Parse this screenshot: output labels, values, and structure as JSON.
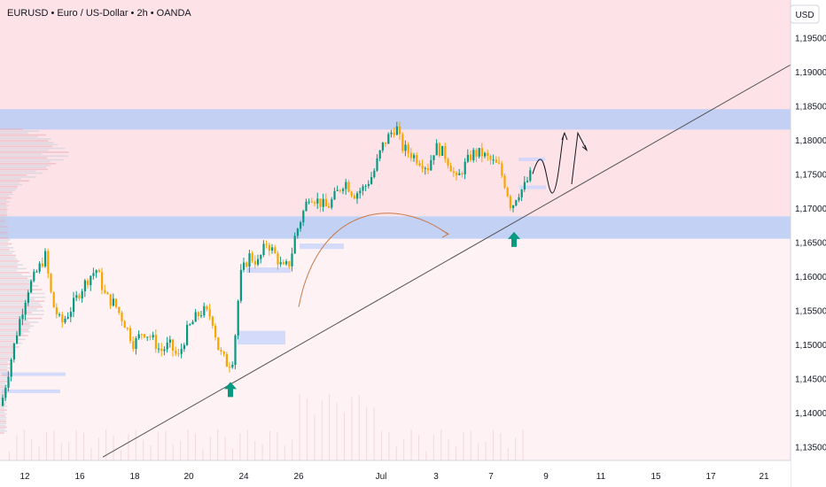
{
  "header": {
    "title": "EURUSD • Euro / US-Dollar • 2h • OANDA"
  },
  "currency_badge": "USD",
  "colors": {
    "bull": "#089981",
    "bear": "#f7a600",
    "resistance_zone": "#b8cbf5",
    "support_zone": "#b8cbf5",
    "premium_zone": "#fde3e8",
    "trendline": "#555555",
    "arrow_up": "#089981",
    "curve_arrow": "#c97a4a",
    "projection": "#131722"
  },
  "chart_data": {
    "type": "candlestick",
    "symbol": "EURUSD",
    "timeframe": "2h",
    "x_tick_labels": [
      "12",
      "16",
      "18",
      "20",
      "24",
      "26",
      "Jul",
      "3",
      "7",
      "9",
      "11",
      "15",
      "17",
      "21"
    ],
    "y_tick_labels": [
      "1,13500",
      "1,14000",
      "1,14500",
      "1,15000",
      "1,15500",
      "1,16000",
      "1,16500",
      "1,17000",
      "1,17500",
      "1,18000",
      "1,18500",
      "1,19000",
      "1,19500"
    ],
    "y_ticks": [
      1.135,
      1.14,
      1.145,
      1.15,
      1.155,
      1.16,
      1.165,
      1.17,
      1.175,
      1.18,
      1.185,
      1.19,
      1.195
    ],
    "ylim": [
      1.133,
      1.2005
    ],
    "price_path": [
      [
        0,
        1.141
      ],
      [
        10,
        1.147
      ],
      [
        20,
        1.153
      ],
      [
        30,
        1.158
      ],
      [
        42,
        1.161
      ],
      [
        50,
        1.163
      ],
      [
        58,
        1.156
      ],
      [
        68,
        1.153
      ],
      [
        78,
        1.155
      ],
      [
        90,
        1.158
      ],
      [
        100,
        1.16
      ],
      [
        108,
        1.161
      ],
      [
        118,
        1.157
      ],
      [
        128,
        1.156
      ],
      [
        140,
        1.153
      ],
      [
        150,
        1.15
      ],
      [
        160,
        1.152
      ],
      [
        170,
        1.151
      ],
      [
        180,
        1.149
      ],
      [
        190,
        1.15
      ],
      [
        200,
        1.148
      ],
      [
        210,
        1.152
      ],
      [
        220,
        1.154
      ],
      [
        228,
        1.155
      ],
      [
        238,
        1.154
      ],
      [
        246,
        1.149
      ],
      [
        256,
        1.147
      ],
      [
        262,
        1.148
      ],
      [
        270,
        1.16
      ],
      [
        280,
        1.163
      ],
      [
        290,
        1.162
      ],
      [
        300,
        1.165
      ],
      [
        310,
        1.163
      ],
      [
        318,
        1.161
      ],
      [
        326,
        1.162
      ],
      [
        332,
        1.166
      ],
      [
        340,
        1.169
      ],
      [
        348,
        1.172
      ],
      [
        358,
        1.171
      ],
      [
        368,
        1.17
      ],
      [
        378,
        1.172
      ],
      [
        388,
        1.174
      ],
      [
        398,
        1.172
      ],
      [
        410,
        1.173
      ],
      [
        420,
        1.175
      ],
      [
        430,
        1.179
      ],
      [
        440,
        1.181
      ],
      [
        446,
        1.182
      ],
      [
        452,
        1.179
      ],
      [
        462,
        1.178
      ],
      [
        472,
        1.177
      ],
      [
        482,
        1.176
      ],
      [
        490,
        1.179
      ],
      [
        500,
        1.178
      ],
      [
        508,
        1.176
      ],
      [
        514,
        1.174
      ],
      [
        522,
        1.176
      ],
      [
        532,
        1.178
      ],
      [
        542,
        1.178
      ],
      [
        552,
        1.177
      ],
      [
        562,
        1.176
      ],
      [
        570,
        1.173
      ],
      [
        576,
        1.17
      ],
      [
        582,
        1.172
      ],
      [
        590,
        1.173
      ],
      [
        598,
        1.175
      ]
    ],
    "zones": [
      {
        "name": "resistance",
        "from": 1.1815,
        "to": 1.1845
      },
      {
        "name": "support",
        "from": 1.1655,
        "to": 1.1688
      }
    ],
    "trendline": {
      "start": [
        "18",
        1.1335
      ],
      "end": [
        "21+",
        1.191
      ]
    },
    "markers": [
      {
        "type": "arrow-up",
        "near": "24",
        "price": 1.1445
      },
      {
        "type": "arrow-up",
        "near": "7",
        "price": 1.1665
      }
    ],
    "projection": "price rises from ~1.1750 to ~1.1810 then drops to ~1.1725 then rises to ~1.1810 and pulls back toward ~1.1785",
    "grid": false
  }
}
